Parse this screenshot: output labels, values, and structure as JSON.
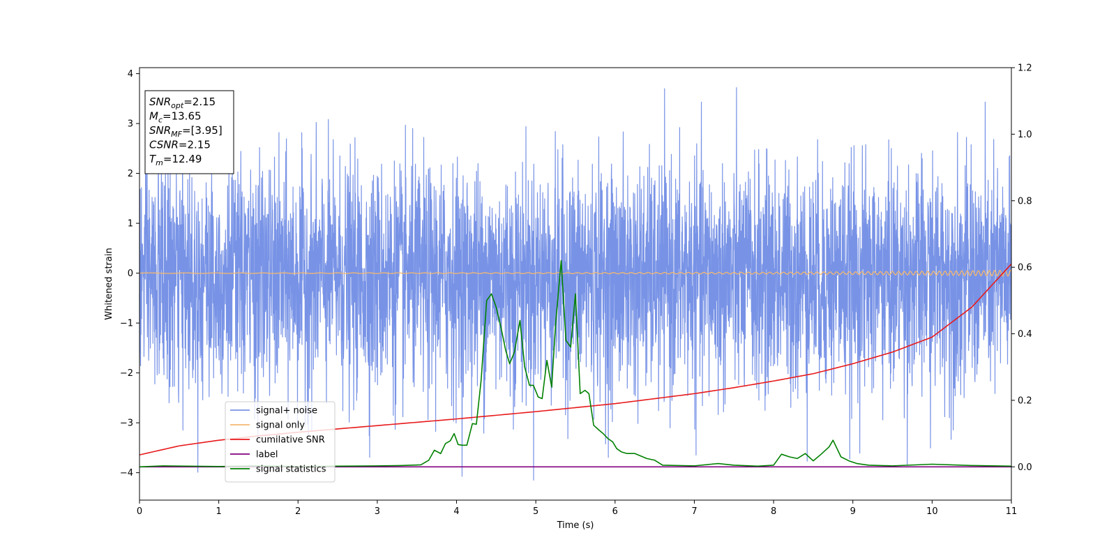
{
  "chart_data": {
    "type": "line",
    "xlabel": "Time (s)",
    "ylabel": "Whitened strain",
    "xlim": [
      0,
      11
    ],
    "ylim_left": [
      -4.55,
      4.12
    ],
    "ylim_right": [
      -0.1,
      1.2
    ],
    "x_ticks": [
      0,
      1,
      2,
      3,
      4,
      5,
      6,
      7,
      8,
      9,
      10,
      11
    ],
    "y_ticks_left": [
      -4,
      -3,
      -2,
      -1,
      0,
      1,
      2,
      3,
      4
    ],
    "y_ticks_right": [
      0.0,
      0.2,
      0.4,
      0.6,
      0.8,
      1.0,
      1.2
    ],
    "y_tick_labels_left": [
      "−4",
      "−3",
      "−2",
      "−1",
      "0",
      "1",
      "2",
      "3",
      "4"
    ],
    "y_tick_labels_right": [
      "0.0",
      "0.2",
      "0.4",
      "0.6",
      "0.8",
      "1.0",
      "1.2"
    ],
    "grid": false,
    "legend_position": "lower-left",
    "info_box": {
      "position": "top-left",
      "lines": [
        {
          "main": "SNR",
          "sub": "opt",
          "value": "=2.15"
        },
        {
          "main": "M",
          "sub": "c",
          "value": "=13.65"
        },
        {
          "main": "SNR",
          "sub": "MF",
          "value": "=[3.95]"
        },
        {
          "main": "CSNR",
          "sub": "",
          "value": "=2.15"
        },
        {
          "main": "T",
          "sub": "m",
          "value": "=12.49"
        }
      ]
    },
    "series": [
      {
        "name": "signal+ noise",
        "axis": "left",
        "color": "#7893e6",
        "description_values": {
          "mean": 0.0,
          "std": 0.95,
          "max": 3.72,
          "min": -4.15,
          "samples": 4096
        }
      },
      {
        "name": "signal only",
        "axis": "left",
        "color": "#f5b870",
        "x": [
          0,
          2,
          4,
          6,
          8,
          9,
          10,
          10.5,
          11
        ],
        "amplitude": [
          0.005,
          0.006,
          0.008,
          0.012,
          0.02,
          0.028,
          0.04,
          0.05,
          0.06
        ],
        "value": 0.0
      },
      {
        "name": "cumilative SNR",
        "axis": "right",
        "color": "#e8191b",
        "x": [
          0,
          0.5,
          1,
          1.5,
          2,
          2.5,
          3,
          3.5,
          4,
          4.5,
          5,
          5.5,
          6,
          6.5,
          7,
          7.5,
          8,
          8.5,
          9,
          9.5,
          10,
          10.5,
          11
        ],
        "values": [
          0.036,
          0.063,
          0.08,
          0.093,
          0.104,
          0.114,
          0.124,
          0.134,
          0.144,
          0.155,
          0.166,
          0.178,
          0.19,
          0.205,
          0.22,
          0.238,
          0.258,
          0.28,
          0.31,
          0.345,
          0.39,
          0.48,
          0.61
        ]
      },
      {
        "name": "label",
        "axis": "right",
        "color": "#800080",
        "x": [
          0,
          11
        ],
        "values": [
          0,
          0
        ]
      },
      {
        "name": "signal statistics",
        "axis": "right",
        "color": "#008000",
        "x": [
          0,
          0.3,
          1,
          1.5,
          2,
          2.5,
          3,
          3.3,
          3.55,
          3.65,
          3.72,
          3.8,
          3.86,
          3.92,
          3.97,
          4.02,
          4.07,
          4.13,
          4.2,
          4.25,
          4.31,
          4.38,
          4.44,
          4.5,
          4.56,
          4.62,
          4.67,
          4.73,
          4.8,
          4.86,
          4.92,
          4.97,
          5.03,
          5.08,
          5.14,
          5.2,
          5.25,
          5.32,
          5.38,
          5.44,
          5.5,
          5.56,
          5.62,
          5.67,
          5.73,
          5.8,
          5.85,
          5.91,
          5.97,
          6.02,
          6.08,
          6.15,
          6.25,
          6.4,
          6.5,
          6.6,
          7,
          7.3,
          7.5,
          7.8,
          8.0,
          8.1,
          8.2,
          8.3,
          8.4,
          8.5,
          8.6,
          8.7,
          8.75,
          8.85,
          8.95,
          9.05,
          9.2,
          9.5,
          10,
          10.5,
          11
        ],
        "values": [
          0.0,
          0.003,
          0.001,
          0.003,
          0.001,
          0.002,
          0.003,
          0.004,
          0.006,
          0.02,
          0.05,
          0.04,
          0.07,
          0.078,
          0.1,
          0.067,
          0.065,
          0.065,
          0.13,
          0.128,
          0.26,
          0.5,
          0.52,
          0.48,
          0.42,
          0.35,
          0.31,
          0.345,
          0.44,
          0.3,
          0.245,
          0.245,
          0.21,
          0.205,
          0.32,
          0.24,
          0.43,
          0.62,
          0.38,
          0.36,
          0.52,
          0.22,
          0.23,
          0.22,
          0.125,
          0.11,
          0.1,
          0.085,
          0.075,
          0.055,
          0.045,
          0.04,
          0.04,
          0.025,
          0.02,
          0.005,
          0.003,
          0.01,
          0.005,
          0.002,
          0.005,
          0.038,
          0.03,
          0.025,
          0.04,
          0.018,
          0.038,
          0.06,
          0.08,
          0.03,
          0.018,
          0.01,
          0.005,
          0.003,
          0.008,
          0.004,
          0.002
        ]
      }
    ]
  }
}
